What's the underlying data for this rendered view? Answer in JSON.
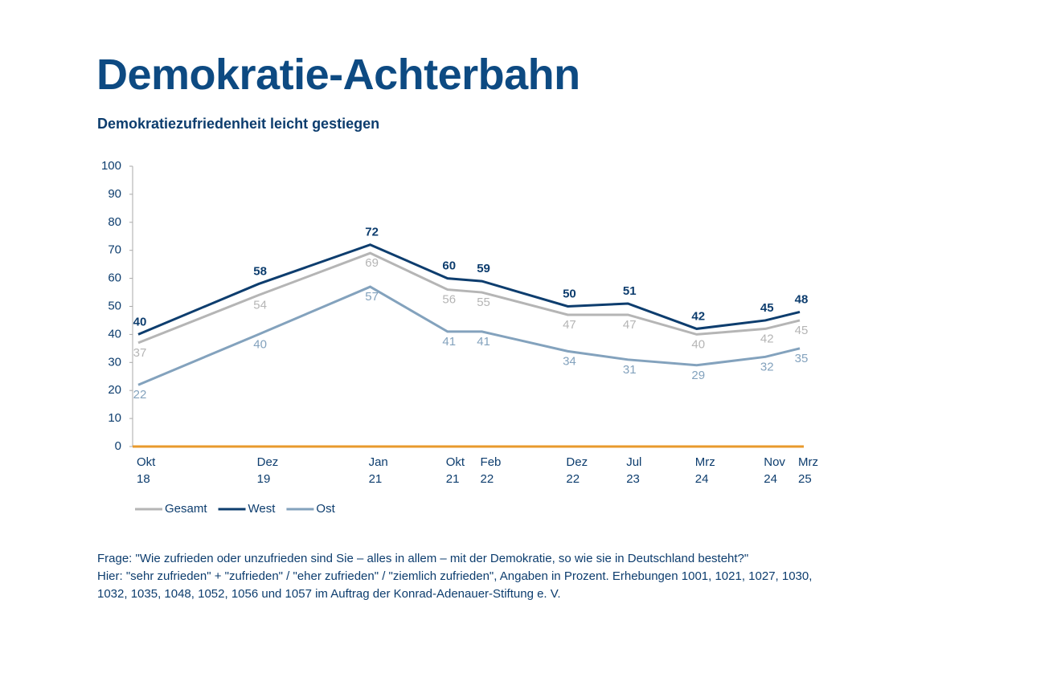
{
  "chart_data": {
    "type": "line",
    "title": "Demokratie-Achterbahn",
    "subtitle": "Demokratiezufriedenheit leicht gestiegen",
    "x": [
      "2018-10",
      "2019-12",
      "2021-01",
      "2021-10",
      "2022-02",
      "2022-12",
      "2023-07",
      "2024-03",
      "2024-11",
      "2025-03"
    ],
    "xticks": [
      {
        "value": "2018-10",
        "label": "Okt 18"
      },
      {
        "value": "2019-12",
        "label": "Dez 19"
      },
      {
        "value": "2021-01",
        "label": "Jan 21"
      },
      {
        "value": "2021-10",
        "label": "Okt 21"
      },
      {
        "value": "2022-02",
        "label": "Feb 22"
      },
      {
        "value": "2022-12",
        "label": "Dez 22"
      },
      {
        "value": "2023-07",
        "label": "Jul 23"
      },
      {
        "value": "2024-03",
        "label": "Mrz 24"
      },
      {
        "value": "2024-11",
        "label": "Nov 24"
      },
      {
        "value": "2025-03",
        "label": "Mrz 25"
      }
    ],
    "series": [
      {
        "name": "Gesamt",
        "color": "#b5b5b5",
        "values": [
          37,
          54,
          69,
          56,
          55,
          47,
          47,
          40,
          42,
          45
        ]
      },
      {
        "name": "West",
        "color": "#0d3d6e",
        "values": [
          40,
          58,
          72,
          60,
          59,
          50,
          51,
          42,
          45,
          48
        ]
      },
      {
        "name": "Ost",
        "color": "#83a2bd",
        "values": [
          22,
          40,
          57,
          41,
          41,
          34,
          31,
          29,
          32,
          35
        ]
      }
    ],
    "ylim": [
      0,
      100
    ],
    "yticks": [
      0,
      10,
      20,
      30,
      40,
      50,
      60,
      70,
      80,
      90,
      100
    ],
    "baseline_color": "#e89a2c",
    "notes": [
      "Frage: \"Wie zufrieden oder unzufrieden sind Sie – alles in allem – mit der Demokratie, so wie sie in Deutschland besteht?\"",
      "Hier: \"sehr zufrieden\" + \"zufrieden\" / \"eher zufrieden\" / \"ziemlich zufrieden\", Angaben in Prozent. Erhebungen 1001, 1021, 1027, 1030, 1032, 1035, 1048, 1052, 1056 und 1057 im Auftrag der Konrad-Adenauer-Stiftung e. V."
    ]
  }
}
